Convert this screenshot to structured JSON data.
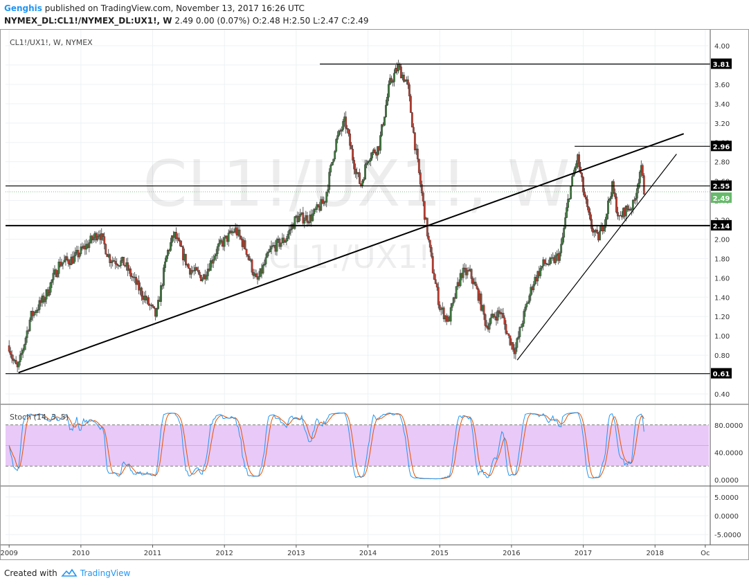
{
  "header": {
    "author": "Genghis",
    "published_text": "published on TradingView.com, November 13, 2017 16:26 UTC",
    "symbol_line": "NYMEX_DL:CL1!/NYMEX_DL:UX1!, W",
    "quote_line": "2.49 0.00 (0.07%) O:2.48 H:2.50 L:2.47 C:2.49"
  },
  "chart_label": "CL1!/UX1!, W, NYMEX",
  "watermark": {
    "big": "CL1!/UX1!, W",
    "small": "CL1!/UX1!"
  },
  "footer": {
    "created": "Created with",
    "brand": "TradingView"
  },
  "colors": {
    "up": "#3f7a3f",
    "down": "#c0392b",
    "stoch_k": "#2196f3",
    "stoch_d": "#e65100",
    "stoch_band": "#e9c9f7"
  },
  "chart_data": {
    "type": "candlestick",
    "y_axis": {
      "min": 0.35,
      "max": 4.1,
      "ticks": [
        0.4,
        0.6,
        0.8,
        1.0,
        1.2,
        1.4,
        1.6,
        1.8,
        2.0,
        2.2,
        2.4,
        2.6,
        2.8,
        3.0,
        3.2,
        3.4,
        3.6,
        3.8,
        4.0
      ],
      "tick_labels": [
        "0.40",
        "0.60",
        "0.80",
        "1.00",
        "1.20",
        "1.40",
        "1.60",
        "1.80",
        "2.00",
        "2.20",
        "2.40",
        "2.60",
        "2.80",
        "3.00",
        "3.20",
        "3.40",
        "3.60",
        "3.80",
        "4.00"
      ]
    },
    "x_axis": {
      "min": 2008.95,
      "max": 2018.75,
      "ticks": [
        2009,
        2010,
        2011,
        2012,
        2013,
        2014,
        2015,
        2016,
        2017,
        2018,
        2018.7
      ],
      "tick_labels": [
        "2009",
        "2010",
        "2011",
        "2012",
        "2013",
        "2014",
        "2015",
        "2016",
        "2017",
        "2018",
        "Oc"
      ]
    },
    "price_anchors": [
      [
        2009.0,
        0.9
      ],
      [
        2009.05,
        0.75
      ],
      [
        2009.12,
        0.65
      ],
      [
        2009.3,
        1.2
      ],
      [
        2009.5,
        1.4
      ],
      [
        2009.7,
        1.75
      ],
      [
        2009.9,
        1.8
      ],
      [
        2010.1,
        1.95
      ],
      [
        2010.25,
        2.08
      ],
      [
        2010.4,
        1.8
      ],
      [
        2010.6,
        1.75
      ],
      [
        2010.8,
        1.5
      ],
      [
        2011.05,
        1.2
      ],
      [
        2011.2,
        1.85
      ],
      [
        2011.3,
        2.05
      ],
      [
        2011.5,
        1.7
      ],
      [
        2011.7,
        1.6
      ],
      [
        2011.9,
        1.9
      ],
      [
        2012.15,
        2.1
      ],
      [
        2012.3,
        1.9
      ],
      [
        2012.45,
        1.55
      ],
      [
        2012.65,
        1.9
      ],
      [
        2012.85,
        2.0
      ],
      [
        2013.0,
        2.22
      ],
      [
        2013.2,
        2.22
      ],
      [
        2013.4,
        2.4
      ],
      [
        2013.55,
        3.0
      ],
      [
        2013.68,
        3.22
      ],
      [
        2013.8,
        2.8
      ],
      [
        2013.9,
        2.55
      ],
      [
        2014.0,
        2.85
      ],
      [
        2014.15,
        2.95
      ],
      [
        2014.3,
        3.6
      ],
      [
        2014.42,
        3.78
      ],
      [
        2014.55,
        3.6
      ],
      [
        2014.65,
        3.0
      ],
      [
        2014.8,
        2.2
      ],
      [
        2014.9,
        1.7
      ],
      [
        2015.0,
        1.3
      ],
      [
        2015.12,
        1.15
      ],
      [
        2015.3,
        1.65
      ],
      [
        2015.42,
        1.65
      ],
      [
        2015.55,
        1.4
      ],
      [
        2015.65,
        1.1
      ],
      [
        2015.75,
        1.2
      ],
      [
        2015.85,
        1.25
      ],
      [
        2015.95,
        1.0
      ],
      [
        2016.05,
        0.85
      ],
      [
        2016.15,
        1.15
      ],
      [
        2016.3,
        1.55
      ],
      [
        2016.45,
        1.75
      ],
      [
        2016.55,
        1.75
      ],
      [
        2016.68,
        1.85
      ],
      [
        2016.8,
        2.45
      ],
      [
        2016.92,
        2.85
      ],
      [
        2017.0,
        2.5
      ],
      [
        2017.1,
        2.15
      ],
      [
        2017.2,
        2.0
      ],
      [
        2017.3,
        2.2
      ],
      [
        2017.4,
        2.55
      ],
      [
        2017.5,
        2.2
      ],
      [
        2017.58,
        2.3
      ],
      [
        2017.7,
        2.35
      ],
      [
        2017.8,
        2.75
      ],
      [
        2017.85,
        2.49
      ]
    ],
    "horizontal_levels": [
      {
        "value": 3.81,
        "label": "3.81",
        "x_from": 2013.33
      },
      {
        "value": 2.96,
        "label": "2.96",
        "x_from": 2016.88
      },
      {
        "value": 2.55,
        "label": "2.55",
        "x_from": 2008.95
      },
      {
        "value": 2.14,
        "label": "2.14",
        "x_from": 2008.95
      },
      {
        "value": 0.61,
        "label": "0.61",
        "x_from": 2008.95
      }
    ],
    "last_price": {
      "value": 2.49,
      "label": "2.49"
    },
    "trendlines": [
      {
        "from": [
          2009.13,
          0.62
        ],
        "to": [
          2018.4,
          3.09
        ]
      },
      {
        "from": [
          2016.08,
          0.75
        ],
        "to": [
          2018.3,
          2.88
        ]
      }
    ],
    "stochastic": {
      "label": "Stoch (14, 3, 5)",
      "min": -5,
      "max": 105,
      "upper_band": 80,
      "lower_band": 20,
      "mid": 50,
      "tick_values": [
        80,
        40,
        0
      ],
      "tick_labels": [
        "80.0000",
        "40.0000",
        "0.0000"
      ]
    },
    "lower_panel": {
      "min": -7,
      "max": 7,
      "tick_values": [
        5,
        0,
        -5
      ],
      "tick_labels": [
        "5.0000",
        "0.0000",
        "-5.0000"
      ]
    }
  }
}
